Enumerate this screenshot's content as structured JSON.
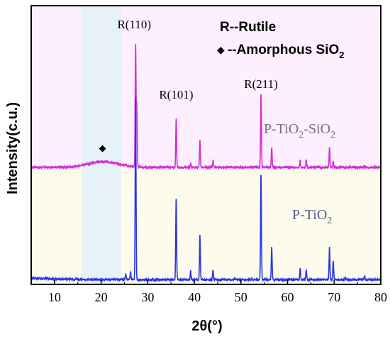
{
  "chart_data": {
    "type": "line",
    "xlabel": "2θ(°)",
    "ylabel": "Intensity(c.u.)",
    "xlim": [
      5,
      80
    ],
    "x_ticks": [
      "10",
      "20",
      "30",
      "40",
      "50",
      "60",
      "70",
      "80"
    ],
    "y_ticks": "none",
    "grid": false,
    "shaded_region_x": [
      15.8,
      24.3
    ],
    "legend_title": "R--Rutile",
    "legend_marker_label": "--Amorphous SiO",
    "legend_marker_subscript": "2",
    "peak_labels": [
      {
        "text": "R(110)",
        "x": 27.4
      },
      {
        "text": "R(101)",
        "x": 36.1
      },
      {
        "text": "R(211)",
        "x": 54.3
      }
    ],
    "amorphous_marker": {
      "symbol": "◆",
      "x": 20.3
    },
    "series": [
      {
        "name_main": "P-TiO",
        "name_sub1": "2",
        "name_mid": "-SiO",
        "name_sub2": "2",
        "color": "#d42fd4",
        "baseline": 0.42,
        "amorphous_hump": {
          "center": 20.5,
          "width": 4.5,
          "height": 0.02
        },
        "peaks": [
          {
            "x": 25.3,
            "h": 0.006
          },
          {
            "x": 27.4,
            "h": 0.435
          },
          {
            "x": 27.65,
            "h": 0.22
          },
          {
            "x": 36.1,
            "h": 0.176
          },
          {
            "x": 39.2,
            "h": 0.017
          },
          {
            "x": 41.2,
            "h": 0.097
          },
          {
            "x": 44.0,
            "h": 0.025
          },
          {
            "x": 54.3,
            "h": 0.267
          },
          {
            "x": 56.6,
            "h": 0.074
          },
          {
            "x": 62.7,
            "h": 0.025
          },
          {
            "x": 64.0,
            "h": 0.025
          },
          {
            "x": 69.0,
            "h": 0.073
          },
          {
            "x": 69.8,
            "h": 0.02
          },
          {
            "x": 76.5,
            "h": 0.006
          }
        ]
      },
      {
        "name_main": "P-TiO",
        "name_sub1": "2",
        "color": "#2a35e8",
        "baseline": 0.017,
        "peaks": [
          {
            "x": 25.3,
            "h": 0.02
          },
          {
            "x": 26.3,
            "h": 0.028
          },
          {
            "x": 27.4,
            "h": 0.654
          },
          {
            "x": 36.1,
            "h": 0.292
          },
          {
            "x": 39.2,
            "h": 0.032
          },
          {
            "x": 41.2,
            "h": 0.158
          },
          {
            "x": 44.0,
            "h": 0.035
          },
          {
            "x": 48.7,
            "h": 0.006
          },
          {
            "x": 52.3,
            "h": 0.008
          },
          {
            "x": 54.3,
            "h": 0.383
          },
          {
            "x": 56.6,
            "h": 0.117
          },
          {
            "x": 62.7,
            "h": 0.042
          },
          {
            "x": 64.0,
            "h": 0.035
          },
          {
            "x": 69.0,
            "h": 0.117
          },
          {
            "x": 69.8,
            "h": 0.067
          },
          {
            "x": 72.4,
            "h": 0.008
          },
          {
            "x": 76.5,
            "h": 0.014
          }
        ]
      }
    ]
  }
}
